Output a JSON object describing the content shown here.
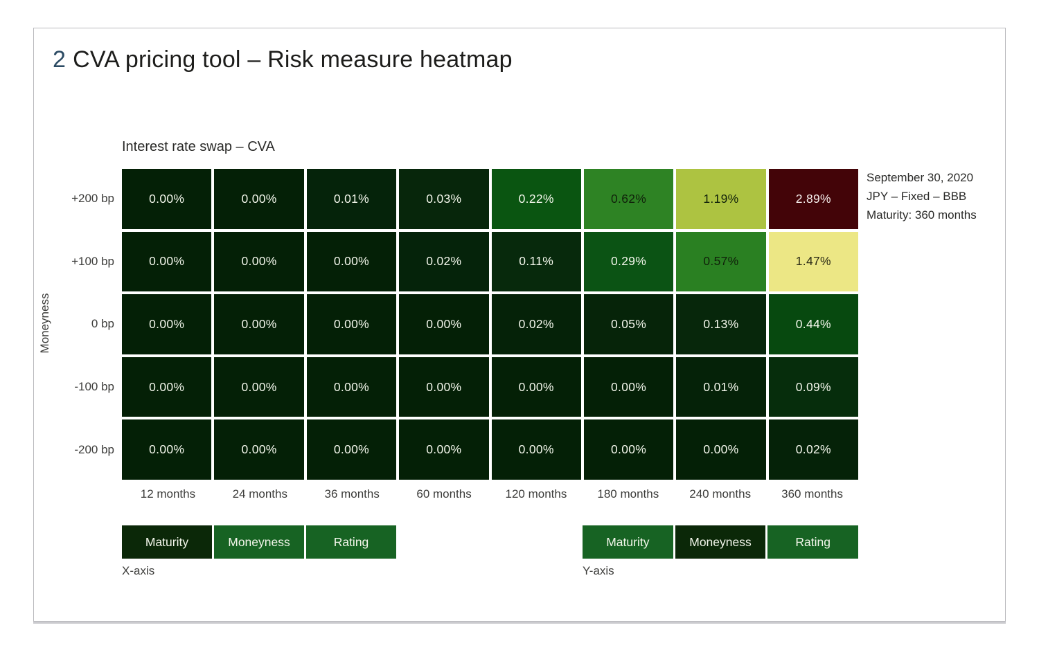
{
  "header": {
    "number": "2",
    "title": "CVA pricing tool – Risk measure heatmap"
  },
  "annotation": {
    "lines": [
      "September 30, 2020",
      "JPY – Fixed – BBB",
      "Maturity: 360 months"
    ]
  },
  "axis_selectors": {
    "x": {
      "caption": "X-axis",
      "options": [
        {
          "label": "Maturity",
          "selected": true
        },
        {
          "label": "Moneyness",
          "selected": false
        },
        {
          "label": "Rating",
          "selected": false
        }
      ]
    },
    "y": {
      "caption": "Y-axis",
      "options": [
        {
          "label": "Maturity",
          "selected": false
        },
        {
          "label": "Moneyness",
          "selected": true
        },
        {
          "label": "Rating",
          "selected": false
        }
      ]
    }
  },
  "colors": {
    "button_selected_bg": "#0b2808",
    "button_bg": "#176323",
    "button_text": "#f4f7ec",
    "title_number": "#2b4a63"
  },
  "chart_data": {
    "type": "heatmap",
    "title": "Interest rate swap – CVA",
    "y_axis_label": "Moneyness",
    "x_categories": [
      "12 months",
      "24 months",
      "36 months",
      "60 months",
      "120 months",
      "180 months",
      "240 months",
      "360 months"
    ],
    "y_categories": [
      "+200 bp",
      "+100 bp",
      "0 bp",
      "-100 bp",
      "-200 bp"
    ],
    "values": [
      [
        "0.00%",
        "0.00%",
        "0.01%",
        "0.03%",
        "0.22%",
        "0.62%",
        "1.19%",
        "2.89%"
      ],
      [
        "0.00%",
        "0.00%",
        "0.00%",
        "0.02%",
        "0.11%",
        "0.29%",
        "0.57%",
        "1.47%"
      ],
      [
        "0.00%",
        "0.00%",
        "0.00%",
        "0.00%",
        "0.02%",
        "0.05%",
        "0.13%",
        "0.44%"
      ],
      [
        "0.00%",
        "0.00%",
        "0.00%",
        "0.00%",
        "0.00%",
        "0.00%",
        "0.01%",
        "0.09%"
      ],
      [
        "0.00%",
        "0.00%",
        "0.00%",
        "0.00%",
        "0.00%",
        "0.00%",
        "0.00%",
        "0.02%"
      ]
    ],
    "cell_colors": [
      [
        "#042006",
        "#042006",
        "#05230a",
        "#07260b",
        "#0a5511",
        "#2e8324",
        "#adc341",
        "#430408"
      ],
      [
        "#042006",
        "#042006",
        "#042006",
        "#05230a",
        "#07290c",
        "#0b5314",
        "#2a8022",
        "#ece785"
      ],
      [
        "#042006",
        "#042006",
        "#042006",
        "#042006",
        "#052208",
        "#062409",
        "#07270b",
        "#07490f"
      ],
      [
        "#042006",
        "#042006",
        "#042006",
        "#042006",
        "#042006",
        "#042006",
        "#052208",
        "#062d0c"
      ],
      [
        "#042006",
        "#042006",
        "#042006",
        "#042006",
        "#042006",
        "#042006",
        "#042006",
        "#052208"
      ]
    ],
    "cell_text_colors": [
      [
        "#f4f7ec",
        "#f4f7ec",
        "#f4f7ec",
        "#f4f7ec",
        "#f4f7ec",
        "#10200a",
        "#10200a",
        "#f7f0ee"
      ],
      [
        "#f4f7ec",
        "#f4f7ec",
        "#f4f7ec",
        "#f4f7ec",
        "#f4f7ec",
        "#f4f7ec",
        "#10200a",
        "#2a2a15"
      ],
      [
        "#f4f7ec",
        "#f4f7ec",
        "#f4f7ec",
        "#f4f7ec",
        "#f4f7ec",
        "#f4f7ec",
        "#f4f7ec",
        "#f4f7ec"
      ],
      [
        "#f4f7ec",
        "#f4f7ec",
        "#f4f7ec",
        "#f4f7ec",
        "#f4f7ec",
        "#f4f7ec",
        "#f4f7ec",
        "#f4f7ec"
      ],
      [
        "#f4f7ec",
        "#f4f7ec",
        "#f4f7ec",
        "#f4f7ec",
        "#f4f7ec",
        "#f4f7ec",
        "#f4f7ec",
        "#f4f7ec"
      ]
    ]
  }
}
